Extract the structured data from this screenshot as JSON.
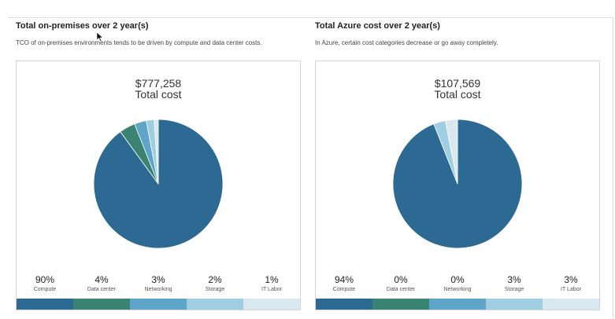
{
  "colors": {
    "compute": "#2d6a93",
    "data_center": "#3a8272",
    "networking": "#5fa4c9",
    "storage": "#9fcde1",
    "it_labor": "#d8e8ee"
  },
  "left": {
    "title": "Total on-premises over 2 year(s)",
    "description": "TCO of on-premises environments tends to be driven by compute and data center costs.",
    "total_amount": "$777,258",
    "total_label": "Total cost",
    "legend": [
      {
        "pct": "90%",
        "name": "Compute"
      },
      {
        "pct": "4%",
        "name": "Data center"
      },
      {
        "pct": "3%",
        "name": "Networking"
      },
      {
        "pct": "2%",
        "name": "Storage"
      },
      {
        "pct": "1%",
        "name": "IT Labor"
      }
    ]
  },
  "right": {
    "title": "Total Azure cost over 2 year(s)",
    "description": "In Azure, certain cost categories decrease or go away completely.",
    "total_amount": "$107,569",
    "total_label": "Total cost",
    "legend": [
      {
        "pct": "94%",
        "name": "Compute"
      },
      {
        "pct": "0%",
        "name": "Data center"
      },
      {
        "pct": "0%",
        "name": "Networking"
      },
      {
        "pct": "3%",
        "name": "Storage"
      },
      {
        "pct": "3%",
        "name": "IT Labor"
      }
    ]
  },
  "chart_data": [
    {
      "type": "pie",
      "categories": [
        "Compute",
        "Data center",
        "Networking",
        "Storage",
        "IT Labor"
      ],
      "values": [
        90,
        4,
        3,
        2,
        1
      ]
    },
    {
      "type": "pie",
      "categories": [
        "Compute",
        "Data center",
        "Networking",
        "Storage",
        "IT Labor"
      ],
      "values": [
        94,
        0,
        0,
        3,
        3
      ]
    }
  ]
}
